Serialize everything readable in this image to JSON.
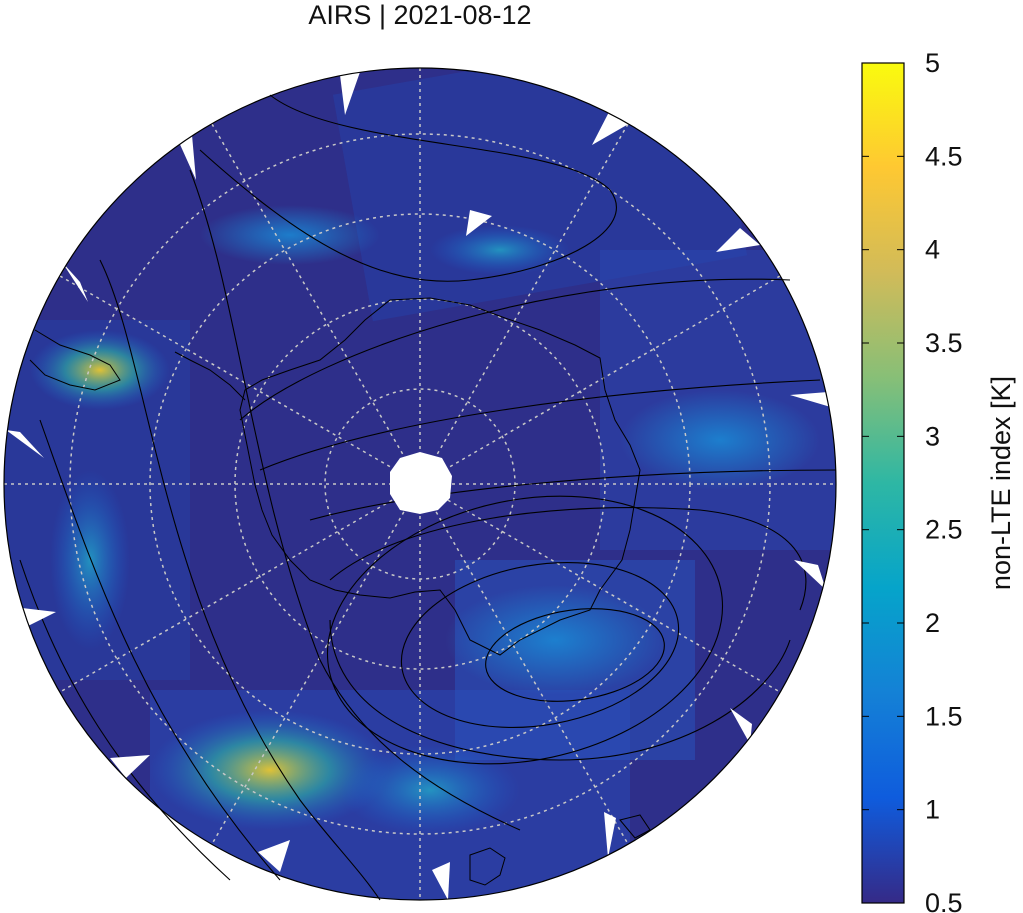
{
  "title": "AIRS | 2021-08-12",
  "map": {
    "projection": "south-polar-stereographic",
    "graticule": "dotted",
    "contours": "black-lines",
    "coastlines": "black-lines",
    "background_color": "#2e2f8a"
  },
  "colorbar": {
    "label": "non-LTE index [K]",
    "min": 0.5,
    "max": 5,
    "ticks": [
      "0.5",
      "1",
      "1.5",
      "2",
      "2.5",
      "3",
      "3.5",
      "4",
      "4.5",
      "5"
    ],
    "colormap": "parula",
    "colors": [
      "#352a87",
      "#0f5cdd",
      "#1481d6",
      "#06a4ca",
      "#2eb7a4",
      "#87bf77",
      "#d1bb59",
      "#fec832",
      "#f9fb0e"
    ]
  }
}
